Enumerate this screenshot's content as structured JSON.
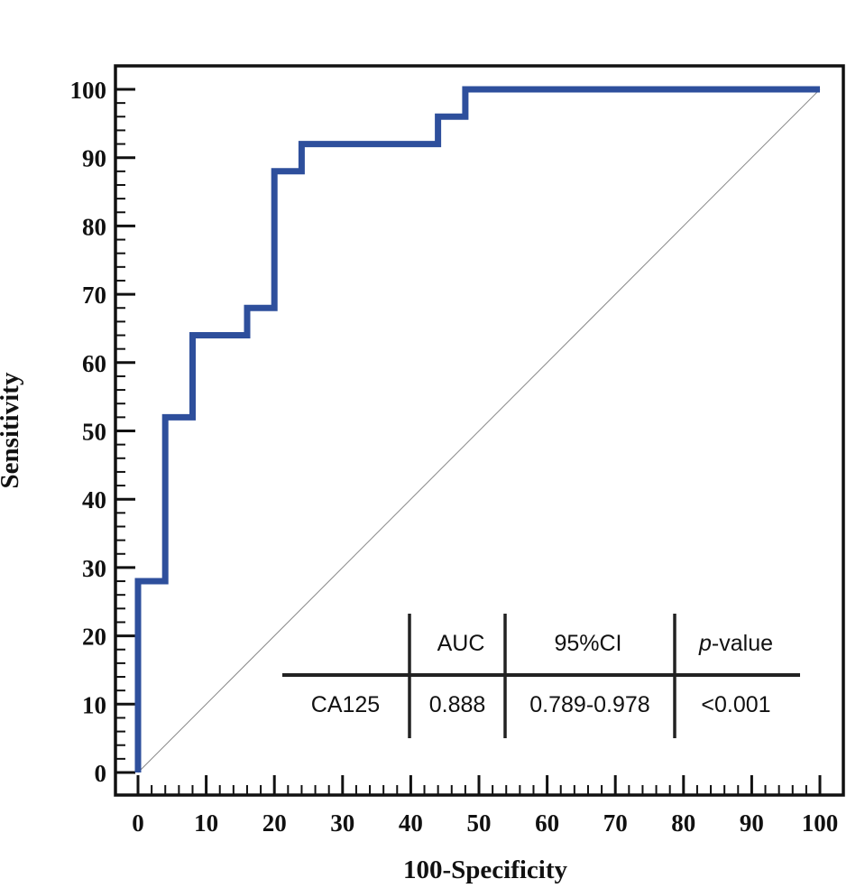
{
  "chart_data": {
    "type": "line",
    "xlabel": "100-Specificity",
    "ylabel": "Sensitivity",
    "xlim": [
      0,
      100
    ],
    "ylim": [
      0,
      100
    ],
    "x_ticks": [
      "0",
      "10",
      "20",
      "30",
      "40",
      "50",
      "60",
      "70",
      "80",
      "90",
      "100"
    ],
    "y_ticks": [
      "0",
      "10",
      "20",
      "30",
      "40",
      "50",
      "60",
      "70",
      "80",
      "90",
      "100"
    ],
    "series": [
      {
        "name": "CA125",
        "color": "#2e4f9c",
        "x": [
          0,
          0,
          4,
          4,
          8,
          8,
          16,
          16,
          20,
          20,
          24,
          24,
          44,
          44,
          48,
          48,
          100
        ],
        "y": [
          0,
          28,
          28,
          52,
          52,
          64,
          64,
          68,
          68,
          88,
          88,
          92,
          92,
          96,
          96,
          100,
          100
        ]
      }
    ],
    "reference_line": {
      "x": [
        0,
        100
      ],
      "y": [
        0,
        100
      ],
      "color": "#888888"
    },
    "table": {
      "headers": [
        "",
        "AUC",
        "95%CI",
        "p-value"
      ],
      "header_italic_part": "p",
      "header_rest": "-value",
      "rows": [
        [
          "CA125",
          "0.888",
          "0.789-0.978",
          "<0.001"
        ]
      ]
    }
  }
}
